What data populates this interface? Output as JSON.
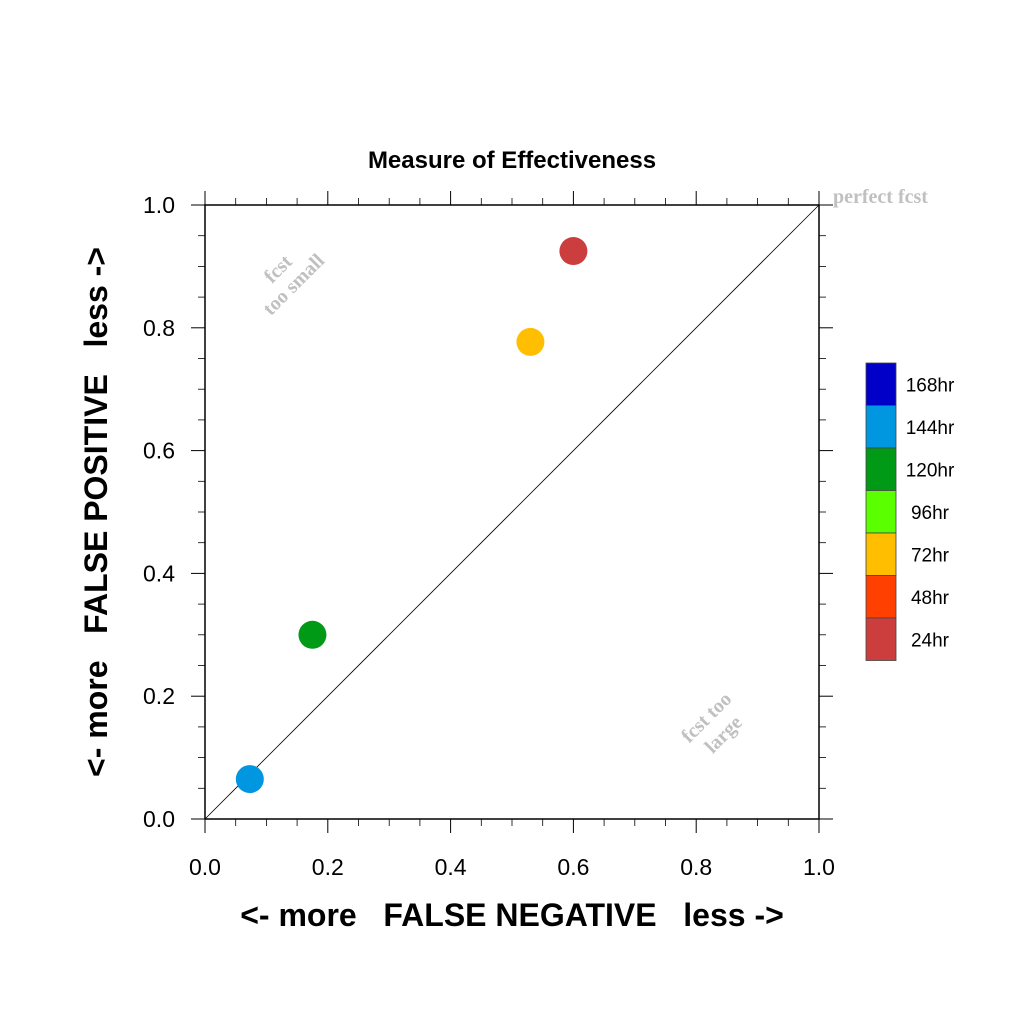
{
  "chart_data": {
    "type": "scatter",
    "title": "Measure of Effectiveness",
    "xlabel": "<- more   FALSE NEGATIVE   less ->",
    "ylabel": "<- more   FALSE POSITIVE   less ->",
    "xlim": [
      0.0,
      1.0
    ],
    "ylim": [
      0.0,
      1.0
    ],
    "xticks": [
      "0.0",
      "0.2",
      "0.4",
      "0.6",
      "0.8",
      "1.0"
    ],
    "yticks": [
      "0.0",
      "0.2",
      "0.4",
      "0.6",
      "0.8",
      "1.0"
    ],
    "xtick_values": [
      0.0,
      0.2,
      0.4,
      0.6,
      0.8,
      1.0
    ],
    "ytick_values": [
      0.0,
      0.2,
      0.4,
      0.6,
      0.8,
      1.0
    ],
    "grid": false,
    "diagonal_reference_line": true,
    "annotations": {
      "perfect": "perfect fcst",
      "too_small_1": "fcst",
      "too_small_2": "too small",
      "too_large_1": "fcst too",
      "too_large_2": "large"
    },
    "points": [
      {
        "series": "24hr",
        "x": 0.6,
        "y": 0.925,
        "color": "#cc3d3d"
      },
      {
        "series": "72hr",
        "x": 0.53,
        "y": 0.777,
        "color": "#ffbf00"
      },
      {
        "series": "120hr",
        "x": 0.175,
        "y": 0.3,
        "color": "#009a16"
      },
      {
        "series": "144hr",
        "x": 0.073,
        "y": 0.065,
        "color": "#0096e0"
      }
    ],
    "legend": {
      "position": "right",
      "entries": [
        {
          "label": "168hr",
          "color": "#0000c8"
        },
        {
          "label": "144hr",
          "color": "#0096e0"
        },
        {
          "label": "120hr",
          "color": "#009a16"
        },
        {
          "label": "96hr",
          "color": "#5aff00"
        },
        {
          "label": "72hr",
          "color": "#ffbf00"
        },
        {
          "label": "48hr",
          "color": "#ff4000"
        },
        {
          "label": "24hr",
          "color": "#cc3d3d"
        }
      ]
    }
  }
}
